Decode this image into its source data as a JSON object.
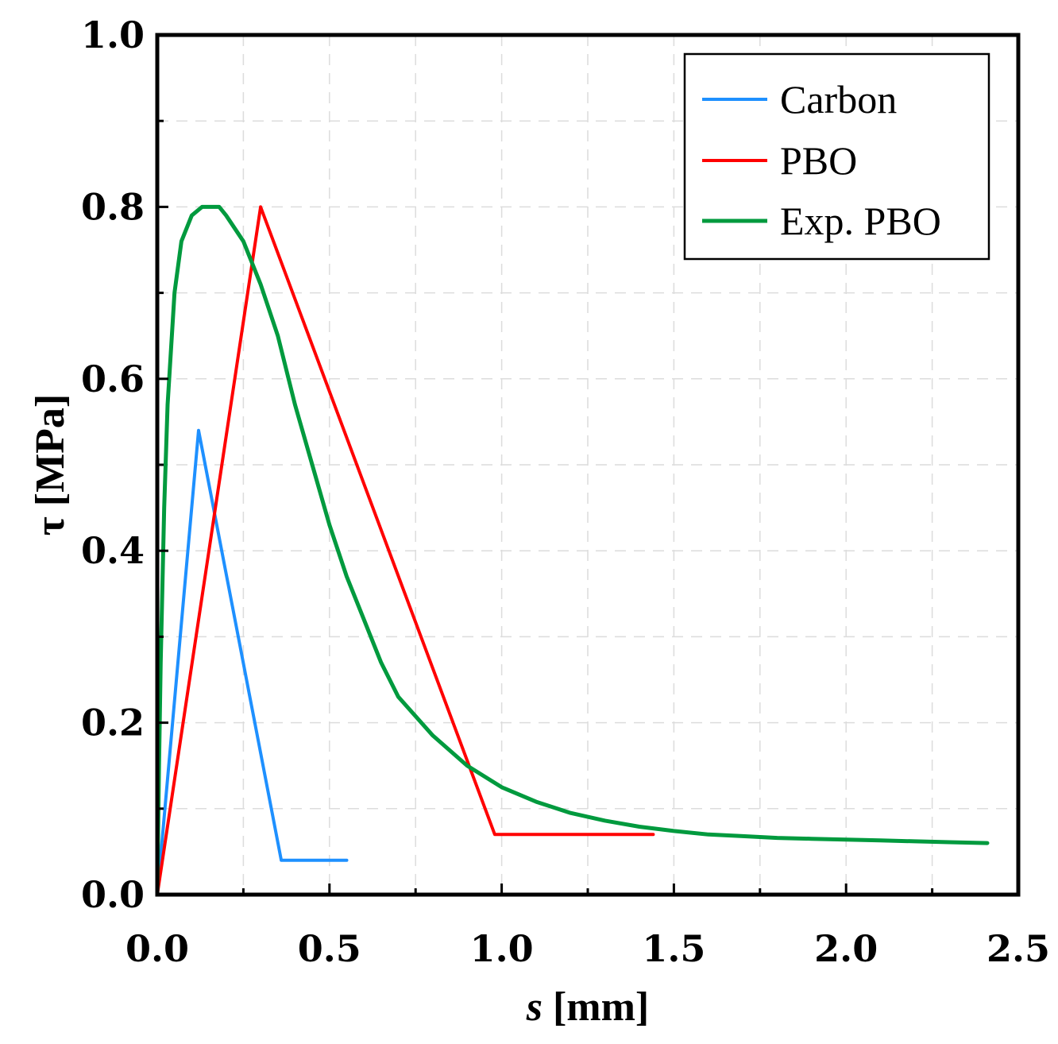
{
  "chart_data": {
    "type": "line",
    "title": "",
    "xlabel": {
      "var": "s",
      "unit": " [mm]"
    },
    "ylabel": "τ [MPa]",
    "xlim": [
      0,
      2.5
    ],
    "ylim": [
      0,
      1.0
    ],
    "x_ticks": [
      "0.0",
      "0.5",
      "1.0",
      "1.5",
      "2.0",
      "2.5"
    ],
    "y_ticks": [
      "0.0",
      "0.2",
      "0.4",
      "0.6",
      "0.8",
      "1.0"
    ],
    "grid": true,
    "legend_position": "top-right",
    "series": [
      {
        "name": "Carbon",
        "color": "#1e90ff",
        "x": [
          0,
          0.12,
          0.36,
          0.55
        ],
        "y": [
          0,
          0.54,
          0.04,
          0.04
        ]
      },
      {
        "name": "PBO",
        "color": "#ff0000",
        "x": [
          0,
          0.3,
          0.98,
          1.44
        ],
        "y": [
          0,
          0.8,
          0.07,
          0.07
        ]
      },
      {
        "name": "Exp. PBO",
        "color": "#009a3e",
        "x": [
          0,
          0.005,
          0.01,
          0.02,
          0.03,
          0.05,
          0.07,
          0.1,
          0.13,
          0.16,
          0.18,
          0.2,
          0.25,
          0.3,
          0.35,
          0.4,
          0.45,
          0.5,
          0.55,
          0.6,
          0.65,
          0.7,
          0.8,
          0.9,
          1.0,
          1.1,
          1.2,
          1.3,
          1.4,
          1.5,
          1.6,
          1.7,
          1.8,
          1.9,
          2.0,
          2.1,
          2.2,
          2.3,
          2.41
        ],
        "y": [
          0,
          0.15,
          0.27,
          0.45,
          0.57,
          0.7,
          0.76,
          0.79,
          0.8,
          0.8,
          0.8,
          0.79,
          0.76,
          0.71,
          0.65,
          0.57,
          0.5,
          0.43,
          0.37,
          0.32,
          0.27,
          0.23,
          0.185,
          0.15,
          0.125,
          0.108,
          0.095,
          0.086,
          0.079,
          0.074,
          0.07,
          0.068,
          0.066,
          0.065,
          0.064,
          0.063,
          0.062,
          0.061,
          0.06
        ]
      }
    ]
  }
}
